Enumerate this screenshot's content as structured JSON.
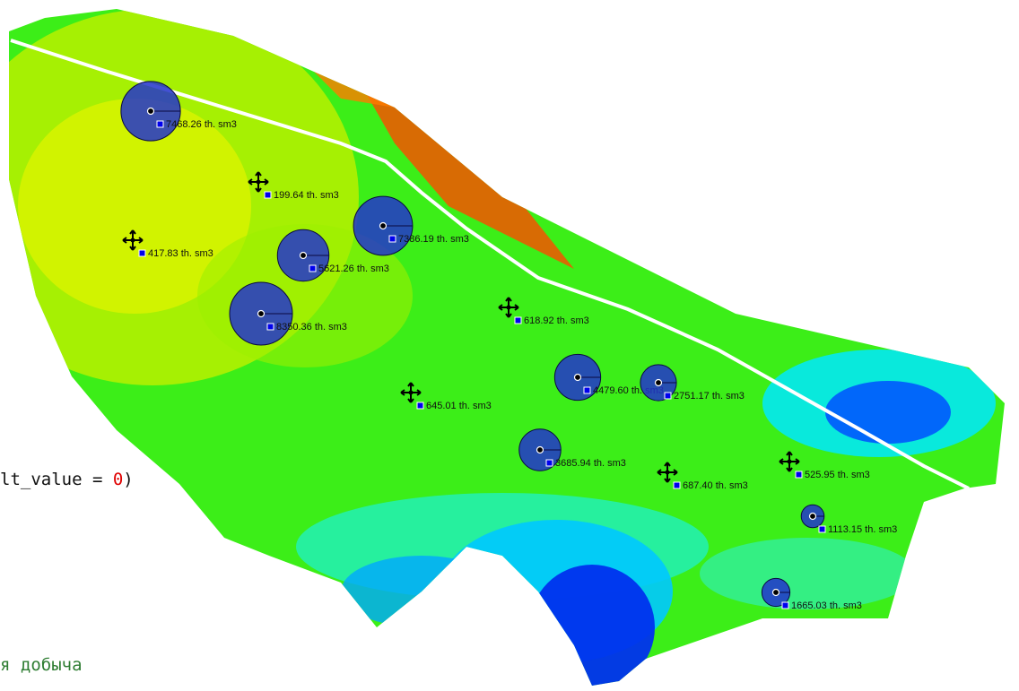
{
  "map": {
    "type": "reservoir-cumulative-production-map",
    "colors": {
      "high": "#ff2a00",
      "mid_high": "#ffd000",
      "mid": "#c8f400",
      "base": "#30ee10",
      "low": "#00e0ff",
      "lowest": "#0000ee",
      "bubble": "#2233cc",
      "fault": "#ffffff"
    },
    "wells": [
      {
        "label": "7468.26 th. sm3",
        "value": 7468.26,
        "type": "producer"
      },
      {
        "label": "199.64 th. sm3",
        "value": 199.64,
        "type": "injector"
      },
      {
        "label": "7386.19 th. sm3",
        "value": 7386.19,
        "type": "producer"
      },
      {
        "label": "417.83 th. sm3",
        "value": 417.83,
        "type": "injector"
      },
      {
        "label": "5621.26 th. sm3",
        "value": 5621.26,
        "type": "producer"
      },
      {
        "label": "8350.36 th. sm3",
        "value": 8350.36,
        "type": "producer"
      },
      {
        "label": "618.92 th. sm3",
        "value": 618.92,
        "type": "injector"
      },
      {
        "label": "4479.60 th. sm3",
        "value": 4479.6,
        "type": "producer"
      },
      {
        "label": "2751.17 th. sm3",
        "value": 2751.17,
        "type": "producer"
      },
      {
        "label": "645.01 th. sm3",
        "value": 645.01,
        "type": "injector"
      },
      {
        "label": "3685.94 th. sm3",
        "value": 3685.94,
        "type": "producer"
      },
      {
        "label": "687.40 th. sm3",
        "value": 687.4,
        "type": "injector"
      },
      {
        "label": "525.95 th. sm3",
        "value": 525.95,
        "type": "injector"
      },
      {
        "label": "1113.15 th. sm3",
        "value": 1113.15,
        "type": "producer"
      },
      {
        "label": "1665.03 th. sm3",
        "value": 1665.03,
        "type": "producer"
      }
    ]
  },
  "overlay": {
    "code_prefix": "lt_value = ",
    "code_number": "0",
    "code_suffix": ")",
    "comment": "я добыча"
  }
}
